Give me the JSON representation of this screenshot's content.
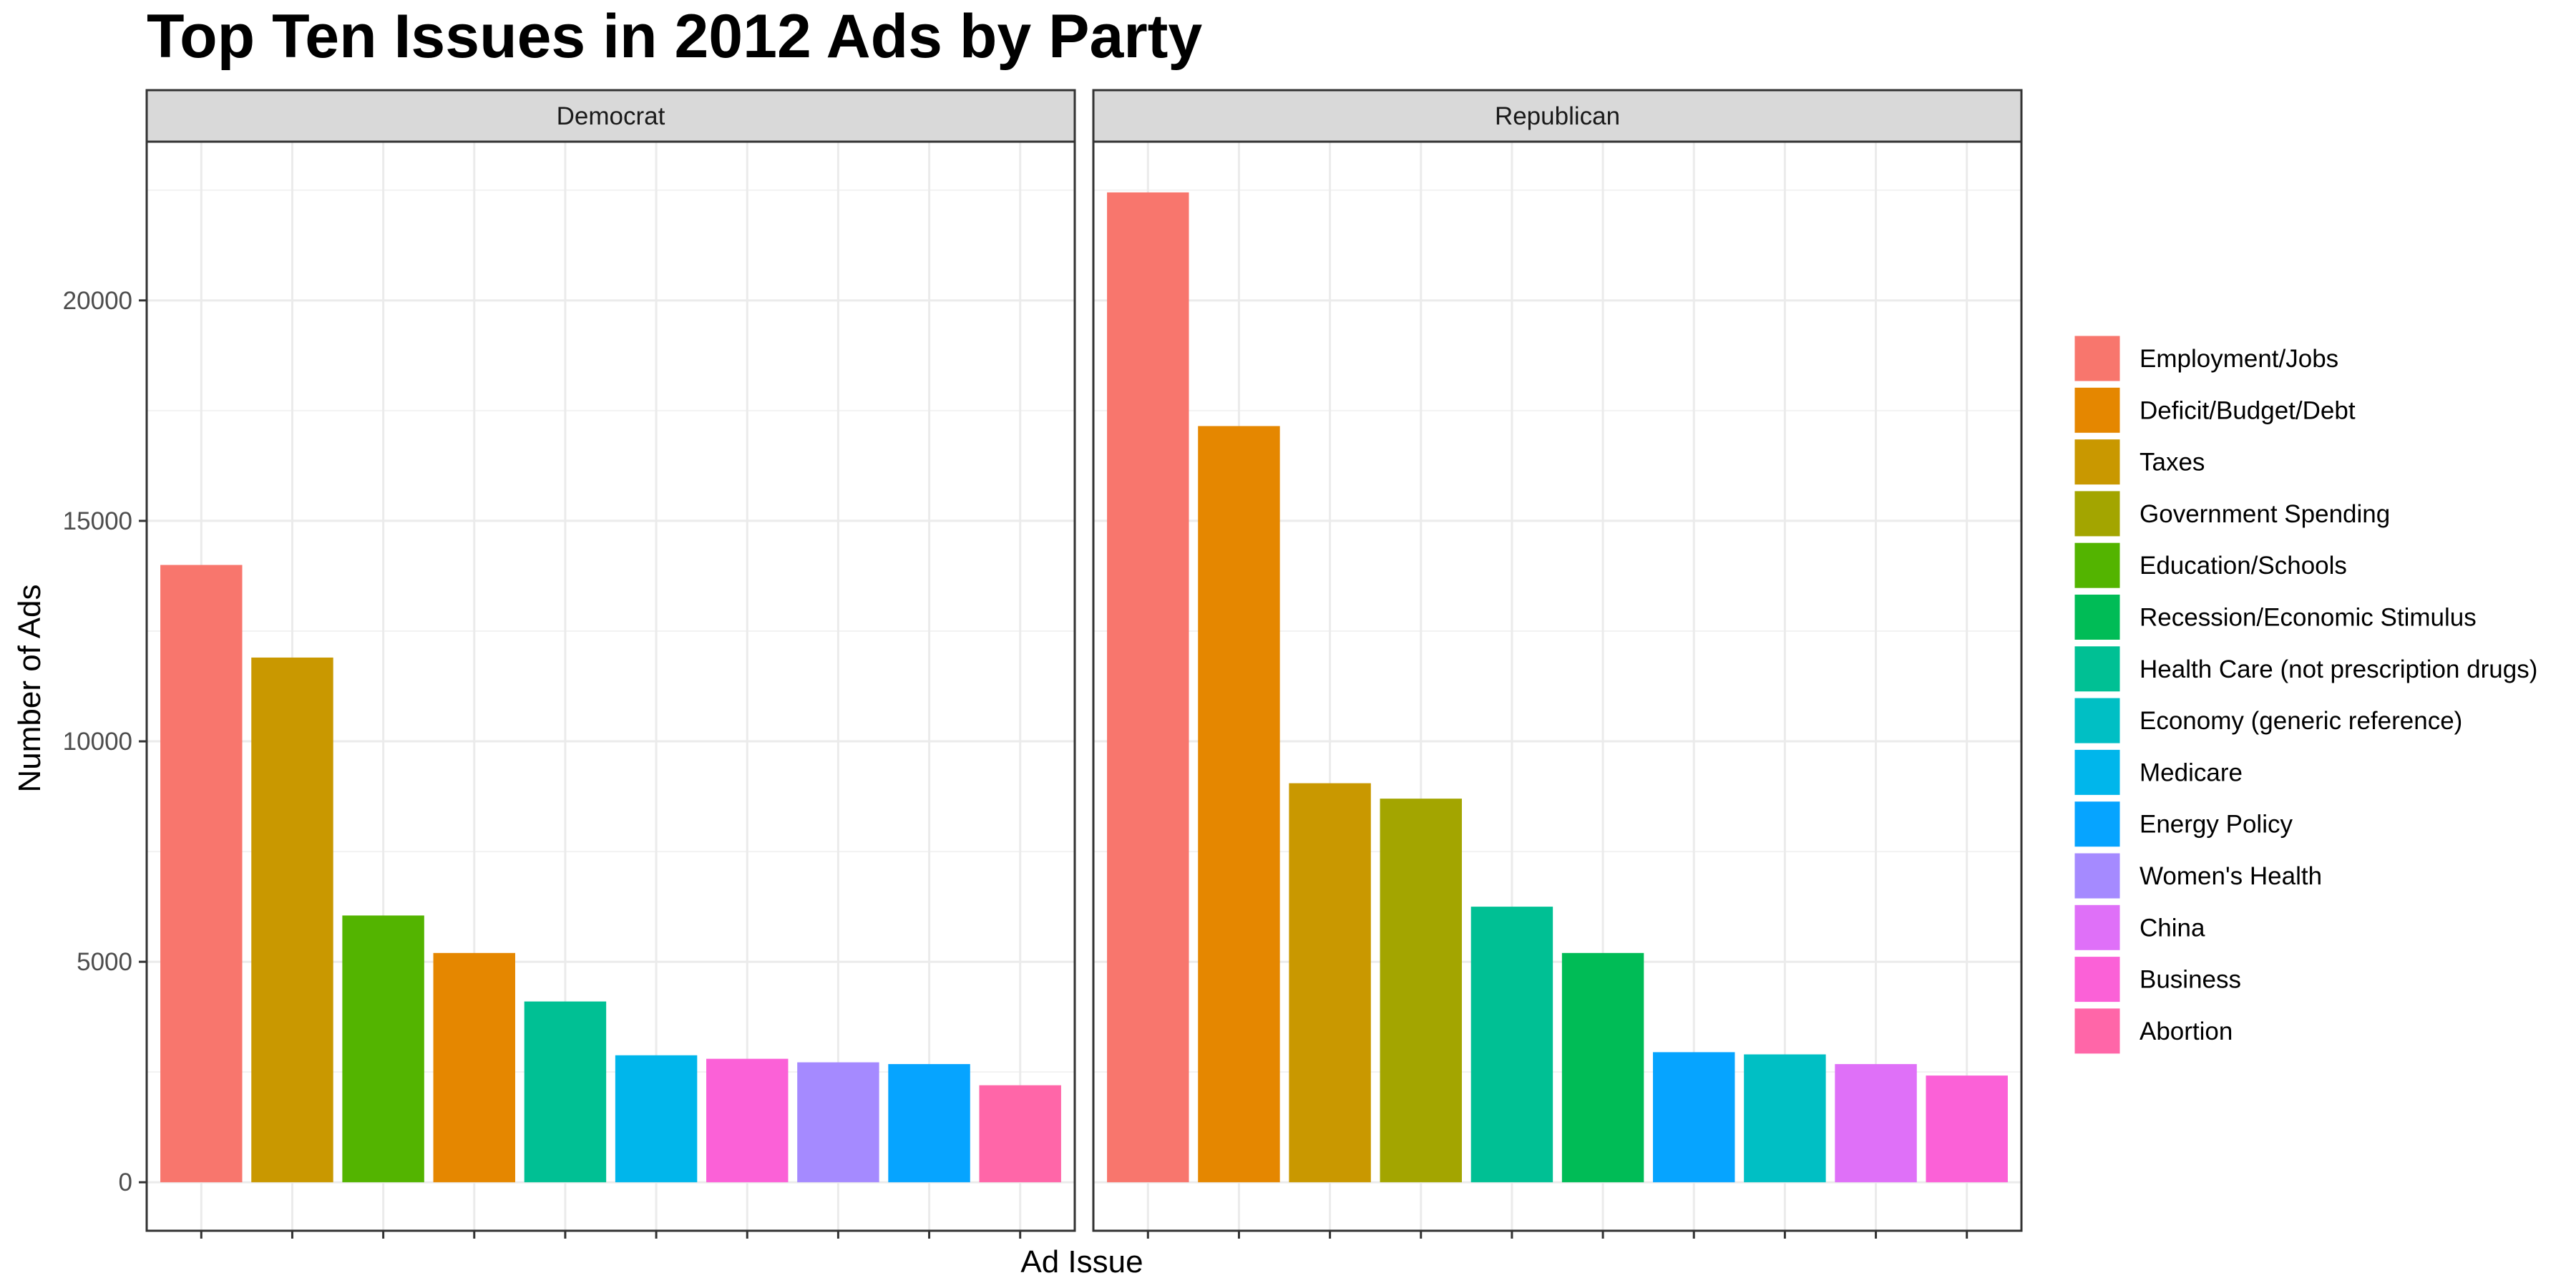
{
  "chart_data": {
    "type": "bar",
    "title": "Top Ten Issues in 2012 Ads by Party",
    "xlabel": "Ad Issue",
    "ylabel": "Number of Ads",
    "ylim": [
      -1100,
      23600
    ],
    "yticks": [
      0,
      5000,
      10000,
      15000,
      20000
    ],
    "grid": true,
    "legend_position": "right",
    "legend": [
      {
        "label": "Employment/Jobs",
        "color": "#F8766D"
      },
      {
        "label": "Deficit/Budget/Debt",
        "color": "#E58700"
      },
      {
        "label": "Taxes",
        "color": "#C99800"
      },
      {
        "label": "Government Spending",
        "color": "#A3A500"
      },
      {
        "label": "Education/Schools",
        "color": "#53B400"
      },
      {
        "label": "Recession/Economic Stimulus",
        "color": "#00BC56"
      },
      {
        "label": "Health Care (not prescription drugs)",
        "color": "#00C094"
      },
      {
        "label": "Economy (generic reference)",
        "color": "#00BFC4"
      },
      {
        "label": "Medicare",
        "color": "#00B6EB"
      },
      {
        "label": "Energy Policy",
        "color": "#06A4FF"
      },
      {
        "label": "Women's Health",
        "color": "#A58AFF"
      },
      {
        "label": "China",
        "color": "#DF70F8"
      },
      {
        "label": "Business",
        "color": "#FB61D7"
      },
      {
        "label": "Abortion",
        "color": "#FF66A8"
      }
    ],
    "panels": [
      {
        "name": "Democrat",
        "bars": [
          {
            "issue": "Employment/Jobs",
            "value": 14000
          },
          {
            "issue": "Taxes",
            "value": 11900
          },
          {
            "issue": "Education/Schools",
            "value": 6050
          },
          {
            "issue": "Deficit/Budget/Debt",
            "value": 5200
          },
          {
            "issue": "Health Care (not prescription drugs)",
            "value": 4100
          },
          {
            "issue": "Medicare",
            "value": 2880
          },
          {
            "issue": "Business",
            "value": 2800
          },
          {
            "issue": "Women's Health",
            "value": 2720
          },
          {
            "issue": "Energy Policy",
            "value": 2680
          },
          {
            "issue": "Abortion",
            "value": 2200
          }
        ]
      },
      {
        "name": "Republican",
        "bars": [
          {
            "issue": "Employment/Jobs",
            "value": 22450
          },
          {
            "issue": "Deficit/Budget/Debt",
            "value": 17150
          },
          {
            "issue": "Taxes",
            "value": 9050
          },
          {
            "issue": "Government Spending",
            "value": 8700
          },
          {
            "issue": "Health Care (not prescription drugs)",
            "value": 6250
          },
          {
            "issue": "Recession/Economic Stimulus",
            "value": 5200
          },
          {
            "issue": "Energy Policy",
            "value": 2950
          },
          {
            "issue": "Economy (generic reference)",
            "value": 2900
          },
          {
            "issue": "China",
            "value": 2680
          },
          {
            "issue": "Business",
            "value": 2420
          }
        ]
      }
    ]
  }
}
